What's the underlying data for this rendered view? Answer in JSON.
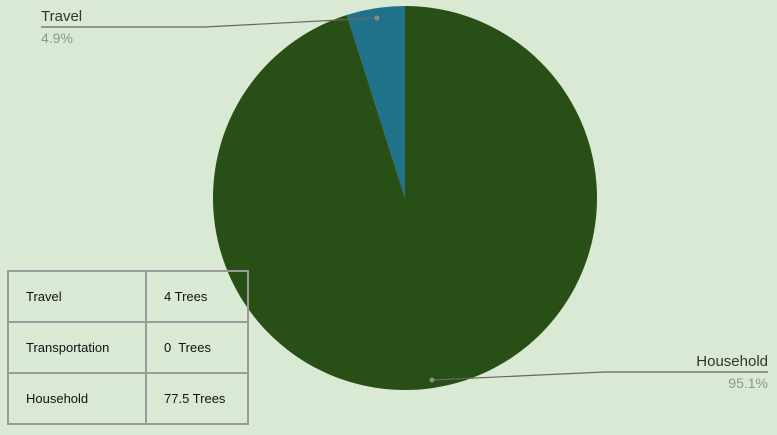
{
  "chart_data": {
    "type": "pie",
    "start_angle_deg": 0,
    "direction": "clockwise",
    "slices": [
      {
        "label": "Household",
        "value": 95.1,
        "percent_label": "95.1%",
        "color": "#284f16"
      },
      {
        "label": "Travel",
        "value": 4.9,
        "percent_label": "4.9%",
        "color": "#20718a"
      }
    ]
  },
  "table": {
    "rows": [
      {
        "name": "Travel",
        "value": "4 Trees"
      },
      {
        "name": "Transportation",
        "value": "0  Trees"
      },
      {
        "name": "Household",
        "value": "77.5 Trees"
      }
    ]
  },
  "colors": {
    "background": "#d9e9d3",
    "household": "#284f16",
    "travel": "#20718a",
    "leader_line": "#666666",
    "table_border": "#9a9a9a"
  }
}
